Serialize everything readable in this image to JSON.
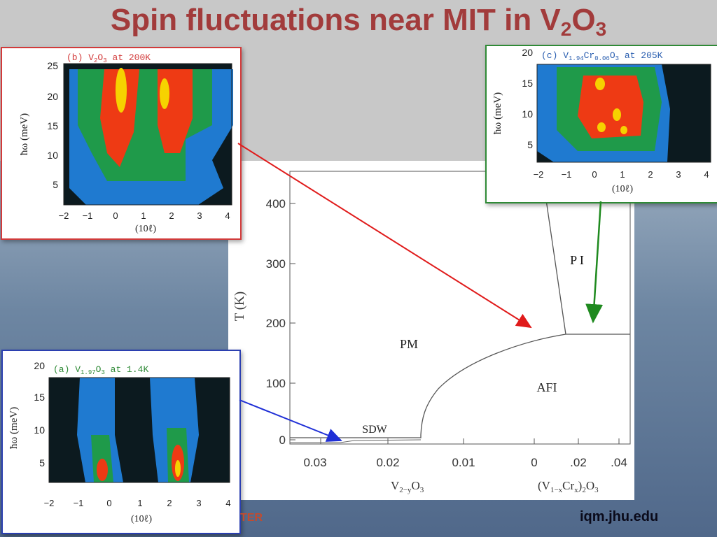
{
  "slide": {
    "title_main": "Spin fluctuations near MIT in V",
    "title_sub1": "2",
    "title_mid": "O",
    "title_sub2": "3",
    "footer_url": "iqm.jhu.edu",
    "footer_partial": "TER"
  },
  "phase_diagram": {
    "ylabel": "T (K)",
    "y_ticks": [
      "0",
      "100",
      "200",
      "300",
      "400"
    ],
    "x_ticks": [
      "0.03",
      "0.02",
      "0.01",
      "0",
      ".02",
      ".04"
    ],
    "x_label_left": "V",
    "x_label_left_sub": "2−y",
    "x_label_left_tail": "O",
    "x_label_left_sub2": "3",
    "x_label_right": "(V",
    "x_label_right_sub": "1−x",
    "x_label_right_mid": "Cr",
    "x_label_right_sub2": "x",
    "x_label_right_tail": ")",
    "x_label_right_sub3": "2",
    "x_label_right_end": "O",
    "x_label_right_sub4": "3",
    "region_pm": "PM",
    "region_afi": "AFI",
    "region_sdw": "SDW",
    "region_pi": "P I"
  },
  "inset_b": {
    "caption_a": "(b) V",
    "caption_sub": "2",
    "caption_b": "O",
    "caption_sub2": "3",
    "caption_c": " at 200K",
    "ylabel": "ħω (meV)",
    "xlabel": "(10ℓ)",
    "y_ticks": [
      "5",
      "10",
      "15",
      "20",
      "25"
    ],
    "x_ticks": [
      "−2",
      "−1",
      "0",
      "1",
      "2",
      "3",
      "4"
    ]
  },
  "inset_c": {
    "caption_a": "(c) V",
    "caption_sub": "1.94",
    "caption_b": "Cr",
    "caption_sub2": "0.06",
    "caption_c": "O",
    "caption_sub3": "3",
    "caption_d": " at 205K",
    "ylabel": "ħω (meV)",
    "xlabel": "(10ℓ)",
    "y_ticks": [
      "5",
      "10",
      "15",
      "20"
    ],
    "x_ticks": [
      "−2",
      "−1",
      "0",
      "1",
      "2",
      "3",
      "4"
    ]
  },
  "inset_a": {
    "caption_a": "(a) V",
    "caption_sub": "1.97",
    "caption_b": "O",
    "caption_sub2": "3",
    "caption_c": " at 1.4K",
    "ylabel": "ħω (meV)",
    "xlabel": "(10ℓ)",
    "y_ticks": [
      "5",
      "10",
      "15",
      "20"
    ],
    "x_ticks": [
      "−2",
      "−1",
      "0",
      "1",
      "2",
      "3",
      "4"
    ]
  },
  "colors": {
    "title": "#a23b3b",
    "arrow_b": "#e01b1b",
    "arrow_c": "#1f8a1f",
    "arrow_a": "#1f2fd6",
    "map_black": "#0c1a1f",
    "map_blue": "#1f7ad0",
    "map_green": "#1f9a4a",
    "map_red": "#ee3a14",
    "map_yellow": "#f6d200"
  }
}
